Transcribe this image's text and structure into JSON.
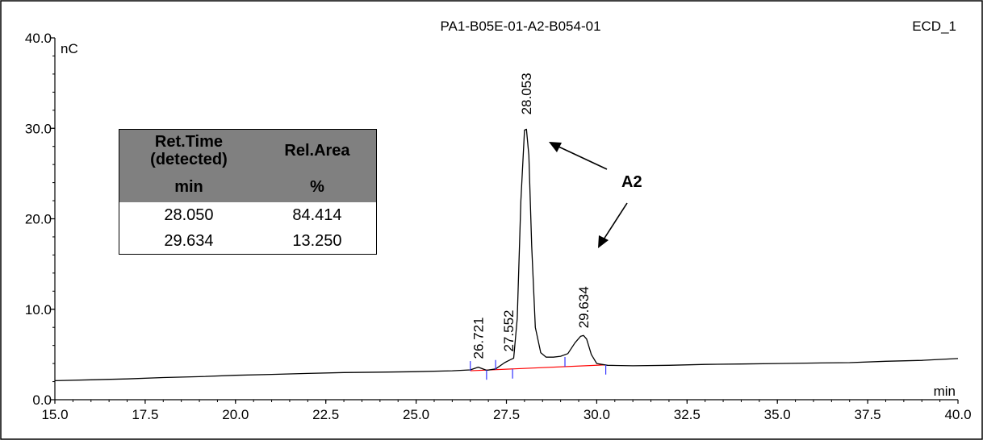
{
  "chart_data": {
    "type": "line",
    "title": "PA1-B05E-01-A2-B054-01",
    "channel": "ECD_1",
    "xlabel": "min",
    "ylabel": "nC",
    "xlim": [
      15.0,
      40.0
    ],
    "ylim": [
      0.0,
      40.0
    ],
    "x_ticks": [
      "15.0",
      "17.5",
      "20.0",
      "22.5",
      "25.0",
      "27.5",
      "30.0",
      "32.5",
      "35.0",
      "37.5",
      "40.0"
    ],
    "y_ticks": [
      "0.0",
      "10.0",
      "20.0",
      "30.0",
      "40.0"
    ],
    "series": [
      {
        "color": "#000000",
        "x": [
          15.0,
          16.0,
          17.0,
          18.0,
          19.0,
          20.0,
          21.0,
          22.0,
          23.0,
          24.0,
          25.0,
          26.0,
          26.5,
          26.72,
          26.95,
          27.2,
          27.45,
          27.552,
          27.7,
          27.8,
          27.9,
          28.0,
          28.053,
          28.12,
          28.2,
          28.3,
          28.45,
          28.6,
          28.8,
          29.0,
          29.2,
          29.4,
          29.55,
          29.634,
          29.72,
          29.85,
          30.0,
          30.3,
          31.0,
          32.0,
          33.0,
          34.0,
          35.0,
          36.0,
          37.0,
          38.0,
          39.0,
          40.0
        ],
        "y": [
          2.1,
          2.2,
          2.3,
          2.45,
          2.55,
          2.7,
          2.8,
          2.9,
          3.0,
          3.05,
          3.1,
          3.2,
          3.3,
          3.6,
          3.25,
          3.4,
          4.1,
          4.3,
          4.6,
          9.0,
          22.0,
          29.8,
          29.9,
          27.0,
          17.0,
          8.0,
          5.2,
          4.7,
          4.7,
          4.8,
          5.1,
          6.3,
          7.0,
          7.1,
          6.7,
          5.0,
          4.0,
          3.8,
          3.75,
          3.8,
          3.9,
          3.95,
          4.0,
          4.05,
          4.1,
          4.25,
          4.35,
          4.55
        ]
      }
    ],
    "baselines": [
      {
        "color": "#ff0000",
        "x": [
          26.5,
          30.25
        ],
        "y": [
          3.2,
          3.85
        ]
      }
    ],
    "peak_labels": [
      {
        "text": "26.721",
        "x": 26.721,
        "y": 4.5
      },
      {
        "text": "27.552",
        "x": 27.552,
        "y": 5.3
      },
      {
        "text": "28.053",
        "x": 28.053,
        "y": 31.5
      },
      {
        "text": "29.634",
        "x": 29.634,
        "y": 7.9
      }
    ],
    "integration_marks_x": [
      26.5,
      26.95,
      27.2,
      27.67,
      29.12,
      30.25
    ],
    "annotation": {
      "text": "A2"
    },
    "grid": false
  },
  "table": {
    "headers": [
      "Ret.Time\n(detected)",
      "Rel.Area"
    ],
    "units": [
      "min",
      "%"
    ],
    "rows": [
      [
        "28.050",
        "84.414"
      ],
      [
        "29.634",
        "13.250"
      ]
    ]
  }
}
